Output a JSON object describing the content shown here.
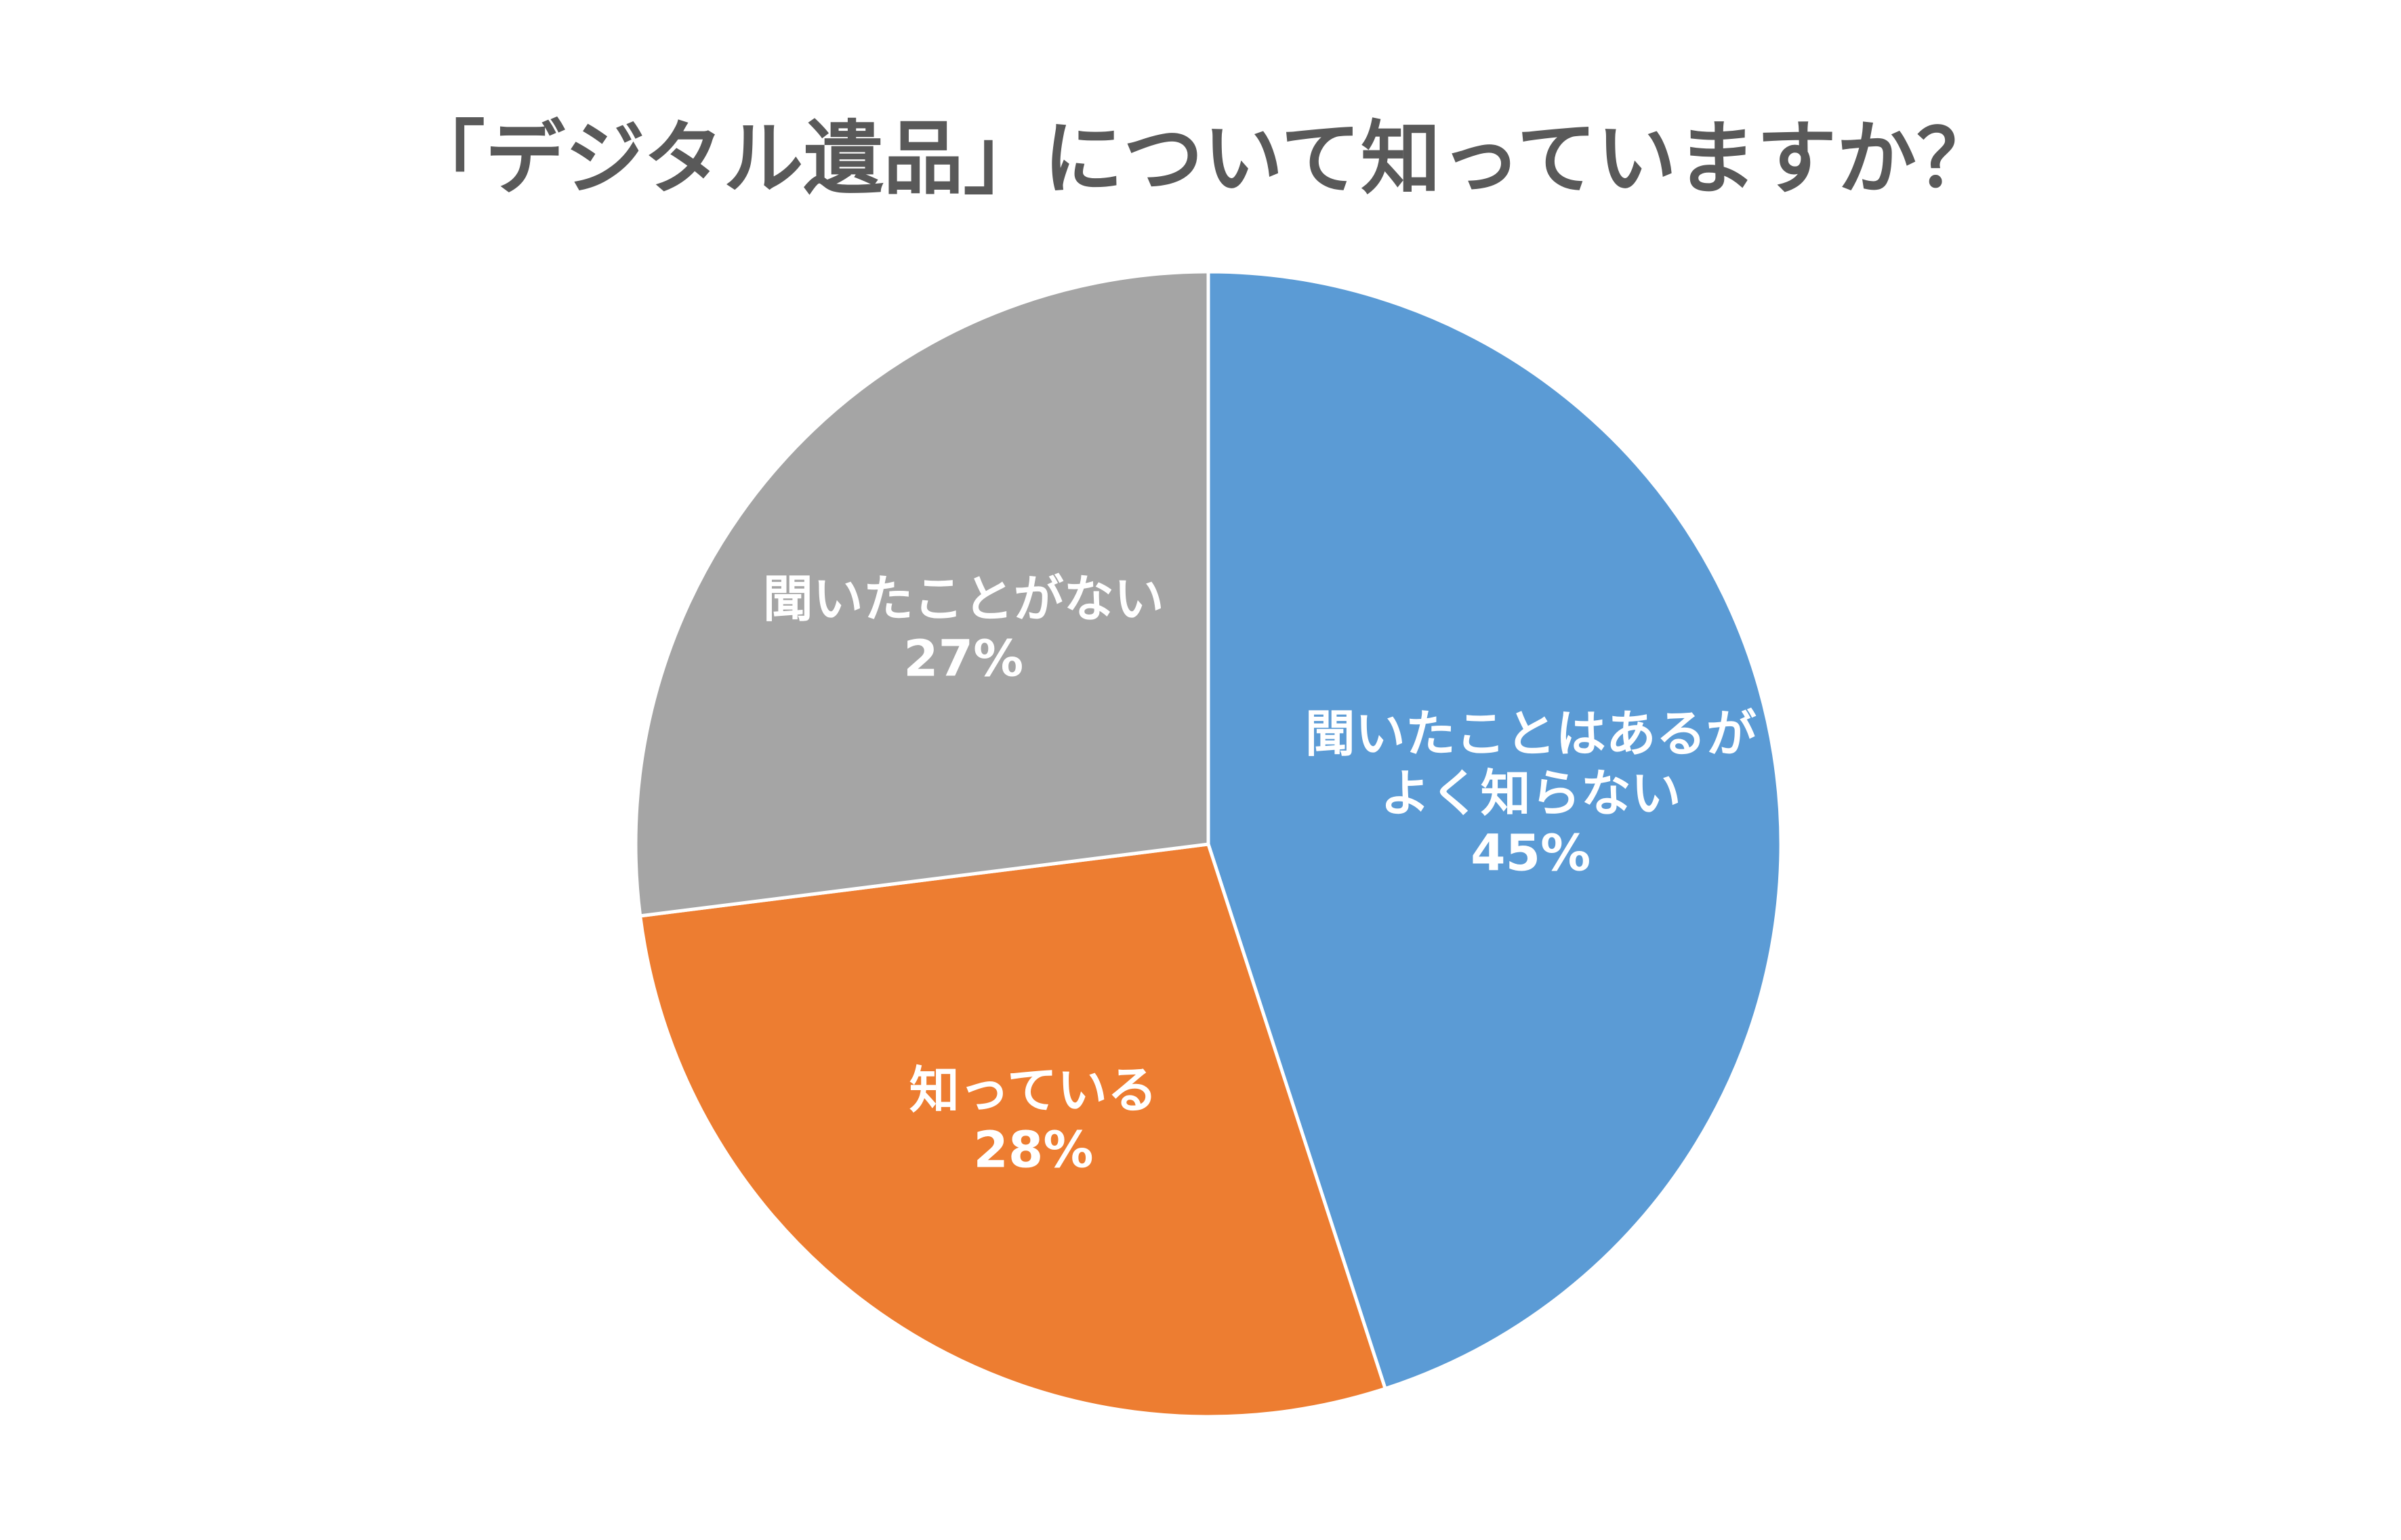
{
  "chart_data": {
    "type": "pie",
    "title": "「デジタル遺品」について知っていますか？",
    "slices": [
      {
        "label_lines": [
          "聞いたことはあるが",
          "よく知らない"
        ],
        "value": 45,
        "value_label": "45%",
        "color": "#5B9BD5"
      },
      {
        "label_lines": [
          "知っている"
        ],
        "value": 28,
        "value_label": "28%",
        "color": "#ED7D31"
      },
      {
        "label_lines": [
          "聞いたことがない"
        ],
        "value": 27,
        "value_label": "27%",
        "color": "#A5A5A5"
      }
    ],
    "start_angle": "12 o'clock",
    "direction": "clockwise",
    "legend": "none"
  }
}
